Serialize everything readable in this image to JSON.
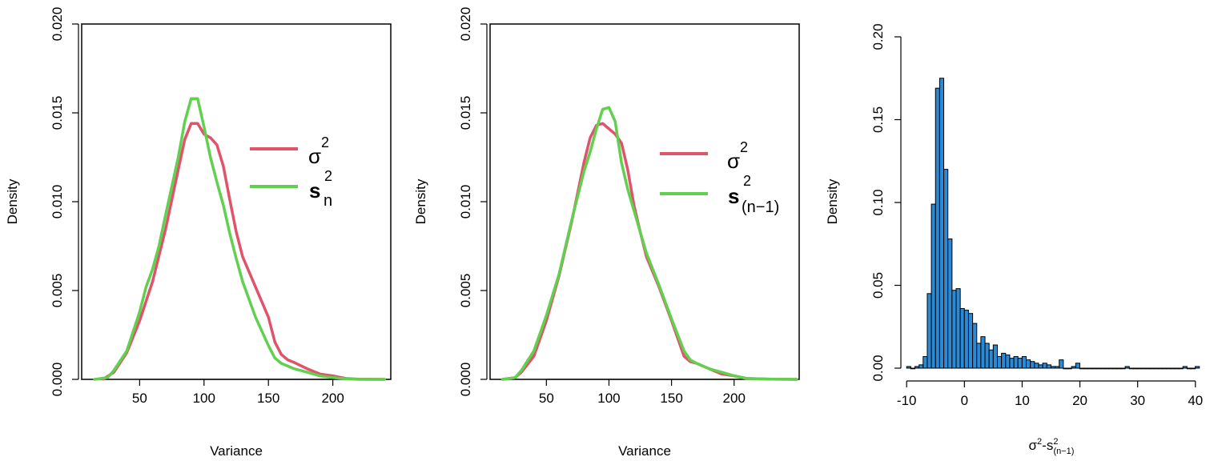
{
  "chart_data": [
    {
      "type": "line",
      "xlabel": "Variance",
      "ylabel": "Density",
      "xlim": [
        5,
        245
      ],
      "ylim": [
        0,
        0.02
      ],
      "x_ticks": [
        "50",
        "100",
        "150",
        "200"
      ],
      "x_tick_values": [
        50,
        100,
        150,
        200
      ],
      "y_ticks": [
        "0.000",
        "0.005",
        "0.010",
        "0.015",
        "0.020"
      ],
      "y_tick_values": [
        0,
        0.005,
        0.01,
        0.015,
        0.02
      ],
      "legend_position": "right",
      "series": [
        {
          "name_base": "σ",
          "name_sup": "2",
          "name_sub": "",
          "color": "#DF536B",
          "x": [
            22,
            30,
            40,
            50,
            60,
            70,
            80,
            85,
            90,
            95,
            100,
            105,
            110,
            115,
            120,
            125,
            130,
            140,
            150,
            155,
            160,
            165,
            170,
            180,
            190,
            200,
            210,
            220,
            240
          ],
          "y": [
            2e-05,
            0.0004,
            0.0015,
            0.0033,
            0.0055,
            0.0084,
            0.0118,
            0.0135,
            0.0144,
            0.0144,
            0.0138,
            0.0136,
            0.0132,
            0.012,
            0.0101,
            0.0083,
            0.0069,
            0.0052,
            0.0035,
            0.0021,
            0.0014,
            0.0011,
            0.00095,
            0.0006,
            0.0003,
            0.0002,
            5e-05,
            1e-05,
            0.0
          ]
        },
        {
          "name_base": "s",
          "name_sup": "2",
          "name_sub": "n",
          "color": "#61D04F",
          "x": [
            15,
            25,
            30,
            40,
            50,
            55,
            60,
            65,
            70,
            80,
            85,
            90,
            95,
            100,
            105,
            110,
            115,
            120,
            125,
            130,
            140,
            150,
            155,
            160,
            170,
            180,
            190,
            200,
            210,
            220,
            240
          ],
          "y": [
            0.0,
            0.0001,
            0.0005,
            0.0016,
            0.0038,
            0.0052,
            0.0062,
            0.0075,
            0.0092,
            0.0125,
            0.0145,
            0.0158,
            0.0158,
            0.0142,
            0.0125,
            0.0111,
            0.0098,
            0.0082,
            0.0068,
            0.0055,
            0.0035,
            0.0019,
            0.0012,
            0.0009,
            0.0006,
            0.0004,
            0.0002,
            0.0001,
            3e-05,
            0.0,
            0.0
          ]
        }
      ]
    },
    {
      "type": "line",
      "xlabel": "Variance",
      "ylabel": "Density",
      "xlim": [
        5,
        252
      ],
      "ylim": [
        0,
        0.02
      ],
      "x_ticks": [
        "50",
        "100",
        "150",
        "200"
      ],
      "x_tick_values": [
        50,
        100,
        150,
        200
      ],
      "y_ticks": [
        "0.000",
        "0.005",
        "0.010",
        "0.015",
        "0.020"
      ],
      "y_tick_values": [
        0,
        0.005,
        0.01,
        0.015,
        0.02
      ],
      "legend_position": "right",
      "series": [
        {
          "name_base": "σ",
          "name_sup": "2",
          "name_sub": "",
          "color": "#DF536B",
          "x": [
            15,
            25,
            30,
            40,
            50,
            60,
            70,
            80,
            85,
            90,
            95,
            100,
            105,
            110,
            115,
            120,
            125,
            130,
            140,
            150,
            160,
            165,
            170,
            180,
            190,
            200,
            210,
            230,
            250
          ],
          "y": [
            0.0,
            0.0001,
            0.0004,
            0.0013,
            0.0033,
            0.0058,
            0.0088,
            0.0122,
            0.0136,
            0.0143,
            0.0144,
            0.0141,
            0.0138,
            0.0133,
            0.0118,
            0.0098,
            0.0083,
            0.0069,
            0.0052,
            0.0033,
            0.0013,
            0.001,
            0.0009,
            0.0006,
            0.0003,
            0.0002,
            5e-05,
            1e-05,
            0.0
          ]
        },
        {
          "name_base": "s",
          "name_sup": "2",
          "name_sub": "(n−1)",
          "color": "#61D04F",
          "x": [
            15,
            25,
            30,
            40,
            50,
            60,
            70,
            80,
            85,
            90,
            95,
            100,
            105,
            110,
            115,
            120,
            125,
            130,
            140,
            150,
            160,
            165,
            170,
            180,
            190,
            200,
            210,
            230,
            250
          ],
          "y": [
            0.0,
            0.0001,
            0.0005,
            0.0016,
            0.0036,
            0.0059,
            0.0089,
            0.0117,
            0.0128,
            0.0141,
            0.0152,
            0.0153,
            0.0145,
            0.0122,
            0.0107,
            0.0095,
            0.0083,
            0.0071,
            0.0053,
            0.0034,
            0.0016,
            0.0011,
            0.0009,
            0.0006,
            0.0004,
            0.0002,
            5e-05,
            1e-05,
            0.0
          ]
        }
      ]
    },
    {
      "type": "bar",
      "subtype": "histogram",
      "xlabel_base": "σ",
      "xlabel_sup1": "2",
      "xlabel_mid": "-s",
      "xlabel_sup2": "2",
      "xlabel_sub": "(n−1)",
      "ylabel": "Density",
      "xlim": [
        -11,
        41
      ],
      "ylim": [
        0,
        0.2
      ],
      "x_ticks": [
        "-10",
        "0",
        "10",
        "20",
        "30",
        "40"
      ],
      "x_tick_values": [
        -10,
        0,
        10,
        20,
        30,
        40
      ],
      "y_ticks": [
        "0.00",
        "0.05",
        "0.10",
        "0.15",
        "0.20"
      ],
      "y_tick_values": [
        0,
        0.05,
        0.1,
        0.15,
        0.2
      ],
      "bar_color": "#2B8AD6",
      "bin_width": 0.714,
      "bin_start": -10,
      "values": [
        0.001,
        0,
        0.001,
        0.002,
        0.007,
        0.045,
        0.099,
        0.169,
        0.175,
        0.12,
        0.078,
        0.047,
        0.048,
        0.036,
        0.035,
        0.033,
        0.027,
        0.015,
        0.019,
        0.015,
        0.011,
        0.014,
        0.007,
        0.009,
        0.008,
        0.006,
        0.007,
        0.006,
        0.007,
        0.005,
        0.004,
        0.003,
        0.002,
        0.003,
        0.002,
        0.001,
        0.001,
        0.005,
        0.0,
        0.0,
        0.001,
        0.003,
        0.0,
        0,
        0,
        0,
        0,
        0,
        0,
        0,
        0,
        0,
        0,
        0.001,
        0,
        0,
        0,
        0,
        0,
        0,
        0,
        0,
        0,
        0,
        0,
        0,
        0,
        0.001,
        0,
        0,
        0.001,
        0.001
      ]
    }
  ]
}
